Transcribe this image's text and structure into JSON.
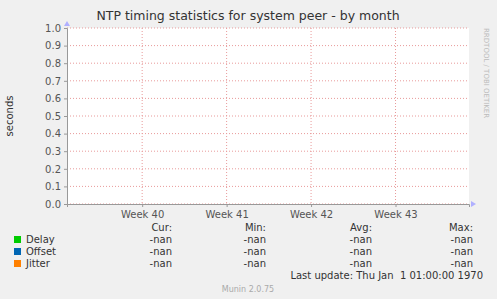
{
  "chart_data": {
    "type": "line",
    "title": "NTP timing statistics for system peer - by month",
    "y_label": "seconds",
    "x": [],
    "xlim": [
      39.61,
      44.37
    ],
    "xticks": [
      {
        "value": 40.5,
        "label": "Week 40"
      },
      {
        "value": 41.5,
        "label": "Week 41"
      },
      {
        "value": 42.5,
        "label": "Week 42"
      },
      {
        "value": 43.5,
        "label": "Week 43"
      }
    ],
    "ylim": [
      0,
      1
    ],
    "yticks": [
      {
        "value": 0,
        "label": "0.0"
      },
      {
        "value": 0.1,
        "label": "0.1"
      },
      {
        "value": 0.2,
        "label": "0.2"
      },
      {
        "value": 0.3,
        "label": "0.3"
      },
      {
        "value": 0.4,
        "label": "0.4"
      },
      {
        "value": 0.5,
        "label": "0.5"
      },
      {
        "value": 0.6,
        "label": "0.6"
      },
      {
        "value": 0.7,
        "label": "0.7"
      },
      {
        "value": 0.8,
        "label": "0.8"
      },
      {
        "value": 0.9,
        "label": "0.9"
      },
      {
        "value": 1,
        "label": "1.0"
      }
    ],
    "grid": true,
    "series": [
      {
        "name": "Delay",
        "color": "#00cc00",
        "values": [],
        "stats": [
          "-nan",
          "-nan",
          "-nan",
          "-nan"
        ]
      },
      {
        "name": "Offset",
        "color": "#0066b3",
        "values": [],
        "stats": [
          "-nan",
          "-nan",
          "-nan",
          "-nan"
        ]
      },
      {
        "name": "Jitter",
        "color": "#ff8000",
        "values": [],
        "stats": [
          "-nan",
          "-nan",
          "-nan",
          "-nan"
        ]
      }
    ],
    "legend_columns": [
      "Cur:",
      "Min:",
      "Avg:",
      "Max:"
    ],
    "last_update": "Last update: Thu Jan  1 01:00:00 1970",
    "footer": "Munin 2.0.75",
    "watermark": "RRDTOOL / TOBI OETIKER"
  }
}
